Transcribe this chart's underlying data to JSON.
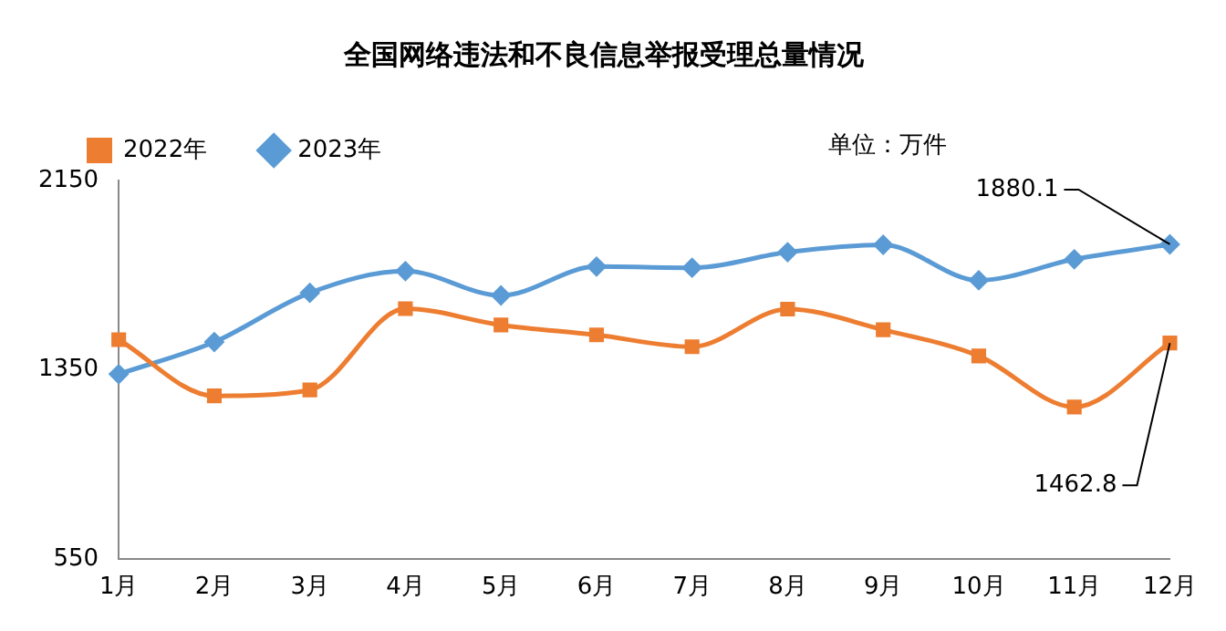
{
  "chart_data": {
    "type": "line",
    "title": "全国网络违法和不良信息举报受理总量情况",
    "categories": [
      "1月",
      "2月",
      "3月",
      "4月",
      "5月",
      "6月",
      "7月",
      "8月",
      "9月",
      "10月",
      "11月",
      "12月"
    ],
    "series": [
      {
        "name": "2022年",
        "color": "#ed7d31",
        "marker": "square",
        "values": [
          1477,
          1239,
          1264,
          1608,
          1539,
          1497,
          1447,
          1606,
          1519,
          1408,
          1192,
          1462.8
        ]
      },
      {
        "name": "2023年",
        "color": "#5b9bd5",
        "marker": "diamond",
        "values": [
          1331,
          1467,
          1675,
          1767,
          1664,
          1786,
          1781,
          1847,
          1878,
          1728,
          1817,
          1880.1
        ]
      }
    ],
    "ylim": [
      550,
      2150
    ],
    "yticks": [
      550,
      1350,
      2150
    ],
    "grid": false,
    "legend": "top left",
    "annotations": [
      "单位：万件",
      {
        "text": "1880.1",
        "x": "12月",
        "y": 1880.1
      },
      {
        "text": "1462.8",
        "x": "12月",
        "y": 1462.8
      }
    ]
  }
}
